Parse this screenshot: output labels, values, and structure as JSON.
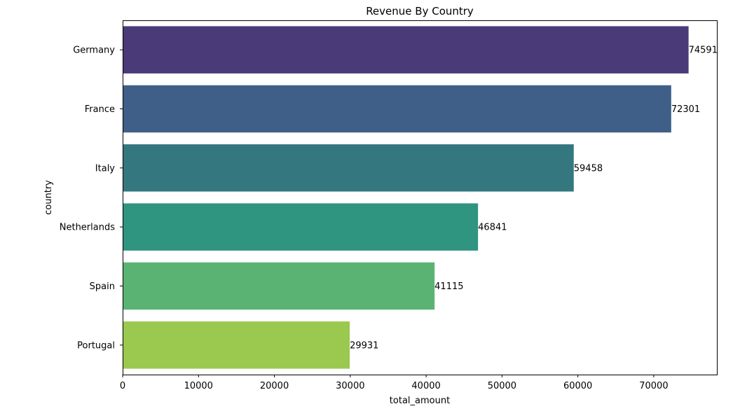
{
  "chart_data": {
    "type": "bar",
    "orientation": "horizontal",
    "title": "Revenue By Country",
    "xlabel": "total_amount",
    "ylabel": "country",
    "categories": [
      "Germany",
      "France",
      "Italy",
      "Netherlands",
      "Spain",
      "Portugal"
    ],
    "values": [
      74591,
      72301,
      59458,
      46841,
      41115,
      29931
    ],
    "data_labels": [
      "74591",
      "72301",
      "59458",
      "46841",
      "41115",
      "29931"
    ],
    "colors": [
      "#4a3a78",
      "#3f5f88",
      "#34777f",
      "#2f9480",
      "#5ab373",
      "#9bc84e"
    ],
    "xlim": [
      0,
      78320
    ],
    "xticks": [
      0,
      10000,
      20000,
      30000,
      40000,
      50000,
      60000,
      70000
    ],
    "xtick_labels": [
      "0",
      "10000",
      "20000",
      "30000",
      "40000",
      "50000",
      "60000",
      "70000"
    ],
    "grid": false,
    "legend": "none"
  }
}
